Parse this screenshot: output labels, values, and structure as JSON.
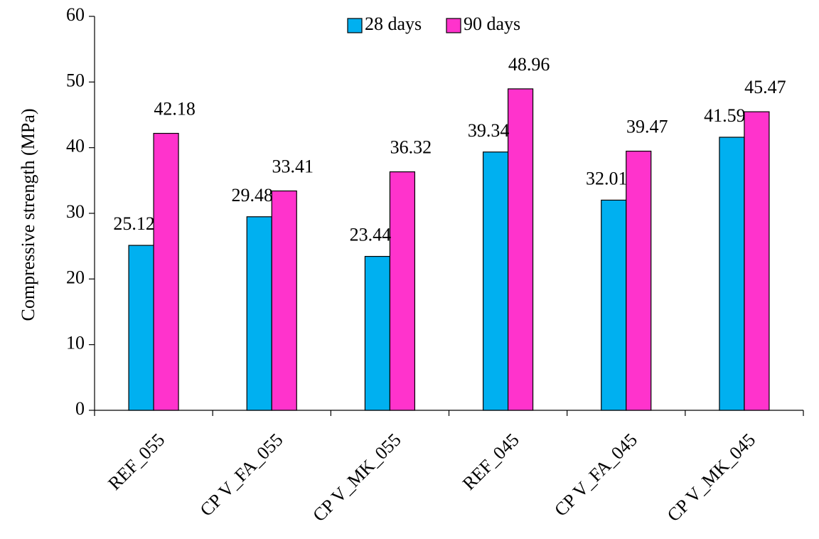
{
  "chart_data": {
    "type": "bar",
    "title": "",
    "xlabel": "",
    "ylabel": "Compressive strength (MPa)",
    "ylim": [
      0,
      60
    ],
    "yticks": [
      0,
      10,
      20,
      30,
      40,
      50,
      60
    ],
    "grid": false,
    "legend_position": "top-center",
    "categories": [
      "REF_055",
      "CP V_FA_055",
      "CP V_MK_055",
      "REF_045",
      "CP V_FA_045",
      "CP V_MK_045"
    ],
    "series": [
      {
        "name": "28 days",
        "color": "#00B0F0",
        "values": [
          25.12,
          29.48,
          23.44,
          39.34,
          32.01,
          41.59
        ],
        "labels": [
          "25.12",
          "29.48",
          "23.44",
          "39.34",
          "32.01",
          "41.59"
        ]
      },
      {
        "name": "90 days",
        "color": "#FF33CC",
        "values": [
          42.18,
          33.41,
          36.32,
          48.96,
          39.47,
          45.47
        ],
        "labels": [
          "42.18",
          "33.41",
          "36.32",
          "48.96",
          "39.47",
          "45.47"
        ]
      }
    ]
  }
}
